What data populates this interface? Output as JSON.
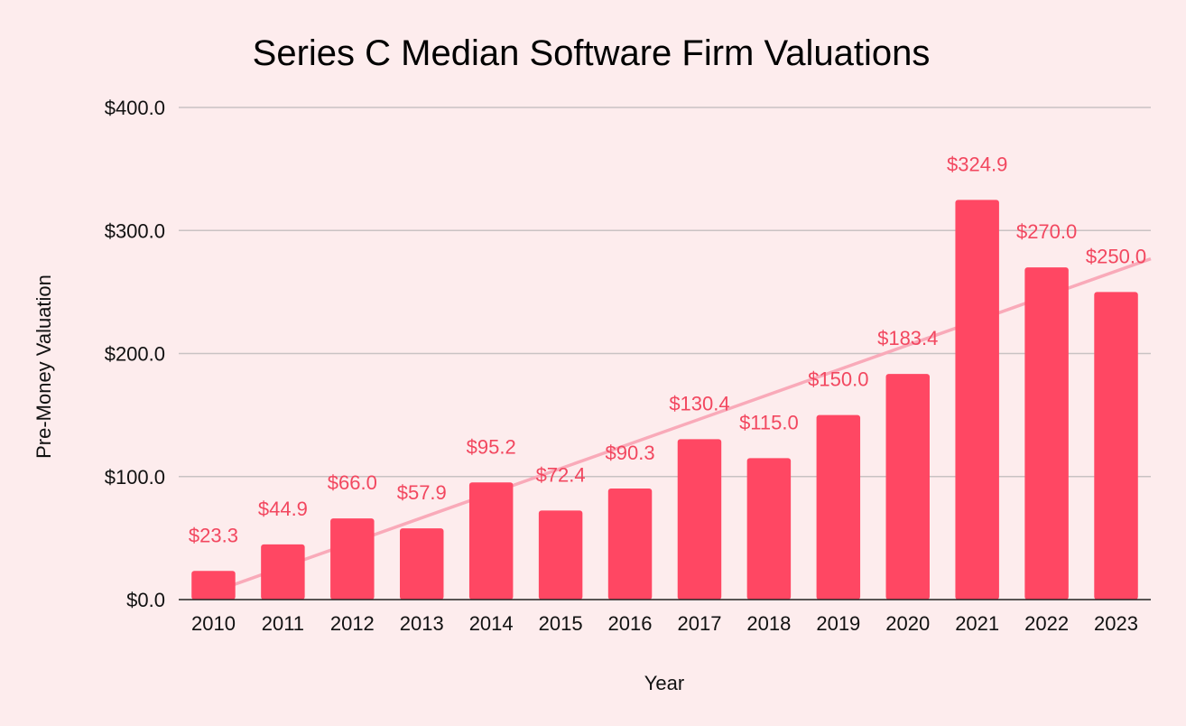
{
  "chart_data": {
    "type": "bar",
    "title": "Series C Median Software Firm Valuations",
    "xlabel": "Year",
    "ylabel": "Pre-Money Valuation",
    "categories": [
      "2010",
      "2011",
      "2012",
      "2013",
      "2014",
      "2015",
      "2016",
      "2017",
      "2018",
      "2019",
      "2020",
      "2021",
      "2022",
      "2023"
    ],
    "values": [
      23.3,
      44.9,
      66.0,
      57.9,
      95.2,
      72.4,
      90.3,
      130.4,
      115.0,
      150.0,
      183.4,
      324.9,
      270.0,
      250.0
    ],
    "data_labels": [
      "$23.3",
      "$44.9",
      "$66.0",
      "$57.9",
      "$95.2",
      "$72.4",
      "$90.3",
      "$130.4",
      "$115.0",
      "$150.0",
      "$183.4",
      "$324.9",
      "$270.0",
      "$250.0"
    ],
    "yticks": [
      0,
      100,
      200,
      300,
      400
    ],
    "ytick_labels": [
      "$0.0",
      "$100.0",
      "$200.0",
      "$300.0",
      "$400.0"
    ],
    "ylim": [
      0,
      400
    ],
    "grid": true,
    "legend": "none",
    "trendline": {
      "type": "linear",
      "start_value": 5.0,
      "end_value": 277.0
    },
    "colors": {
      "background": "#fdeced",
      "bar": "#ff4763",
      "data_label": "#f2475f",
      "trendline": "#f9aab9",
      "grid": "#c9c2c3",
      "baseline": "#222222"
    }
  }
}
